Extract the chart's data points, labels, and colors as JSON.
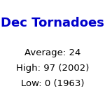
{
  "title": "Dec Tornadoes",
  "title_color": "#0000cc",
  "title_fontsize": 13,
  "lines": [
    "Average: 24",
    "High: 97 (2002)",
    "Low: 0 (1963)"
  ],
  "lines_color": "#000000",
  "lines_fontsize": 9.5,
  "background_color": "#ffffff"
}
